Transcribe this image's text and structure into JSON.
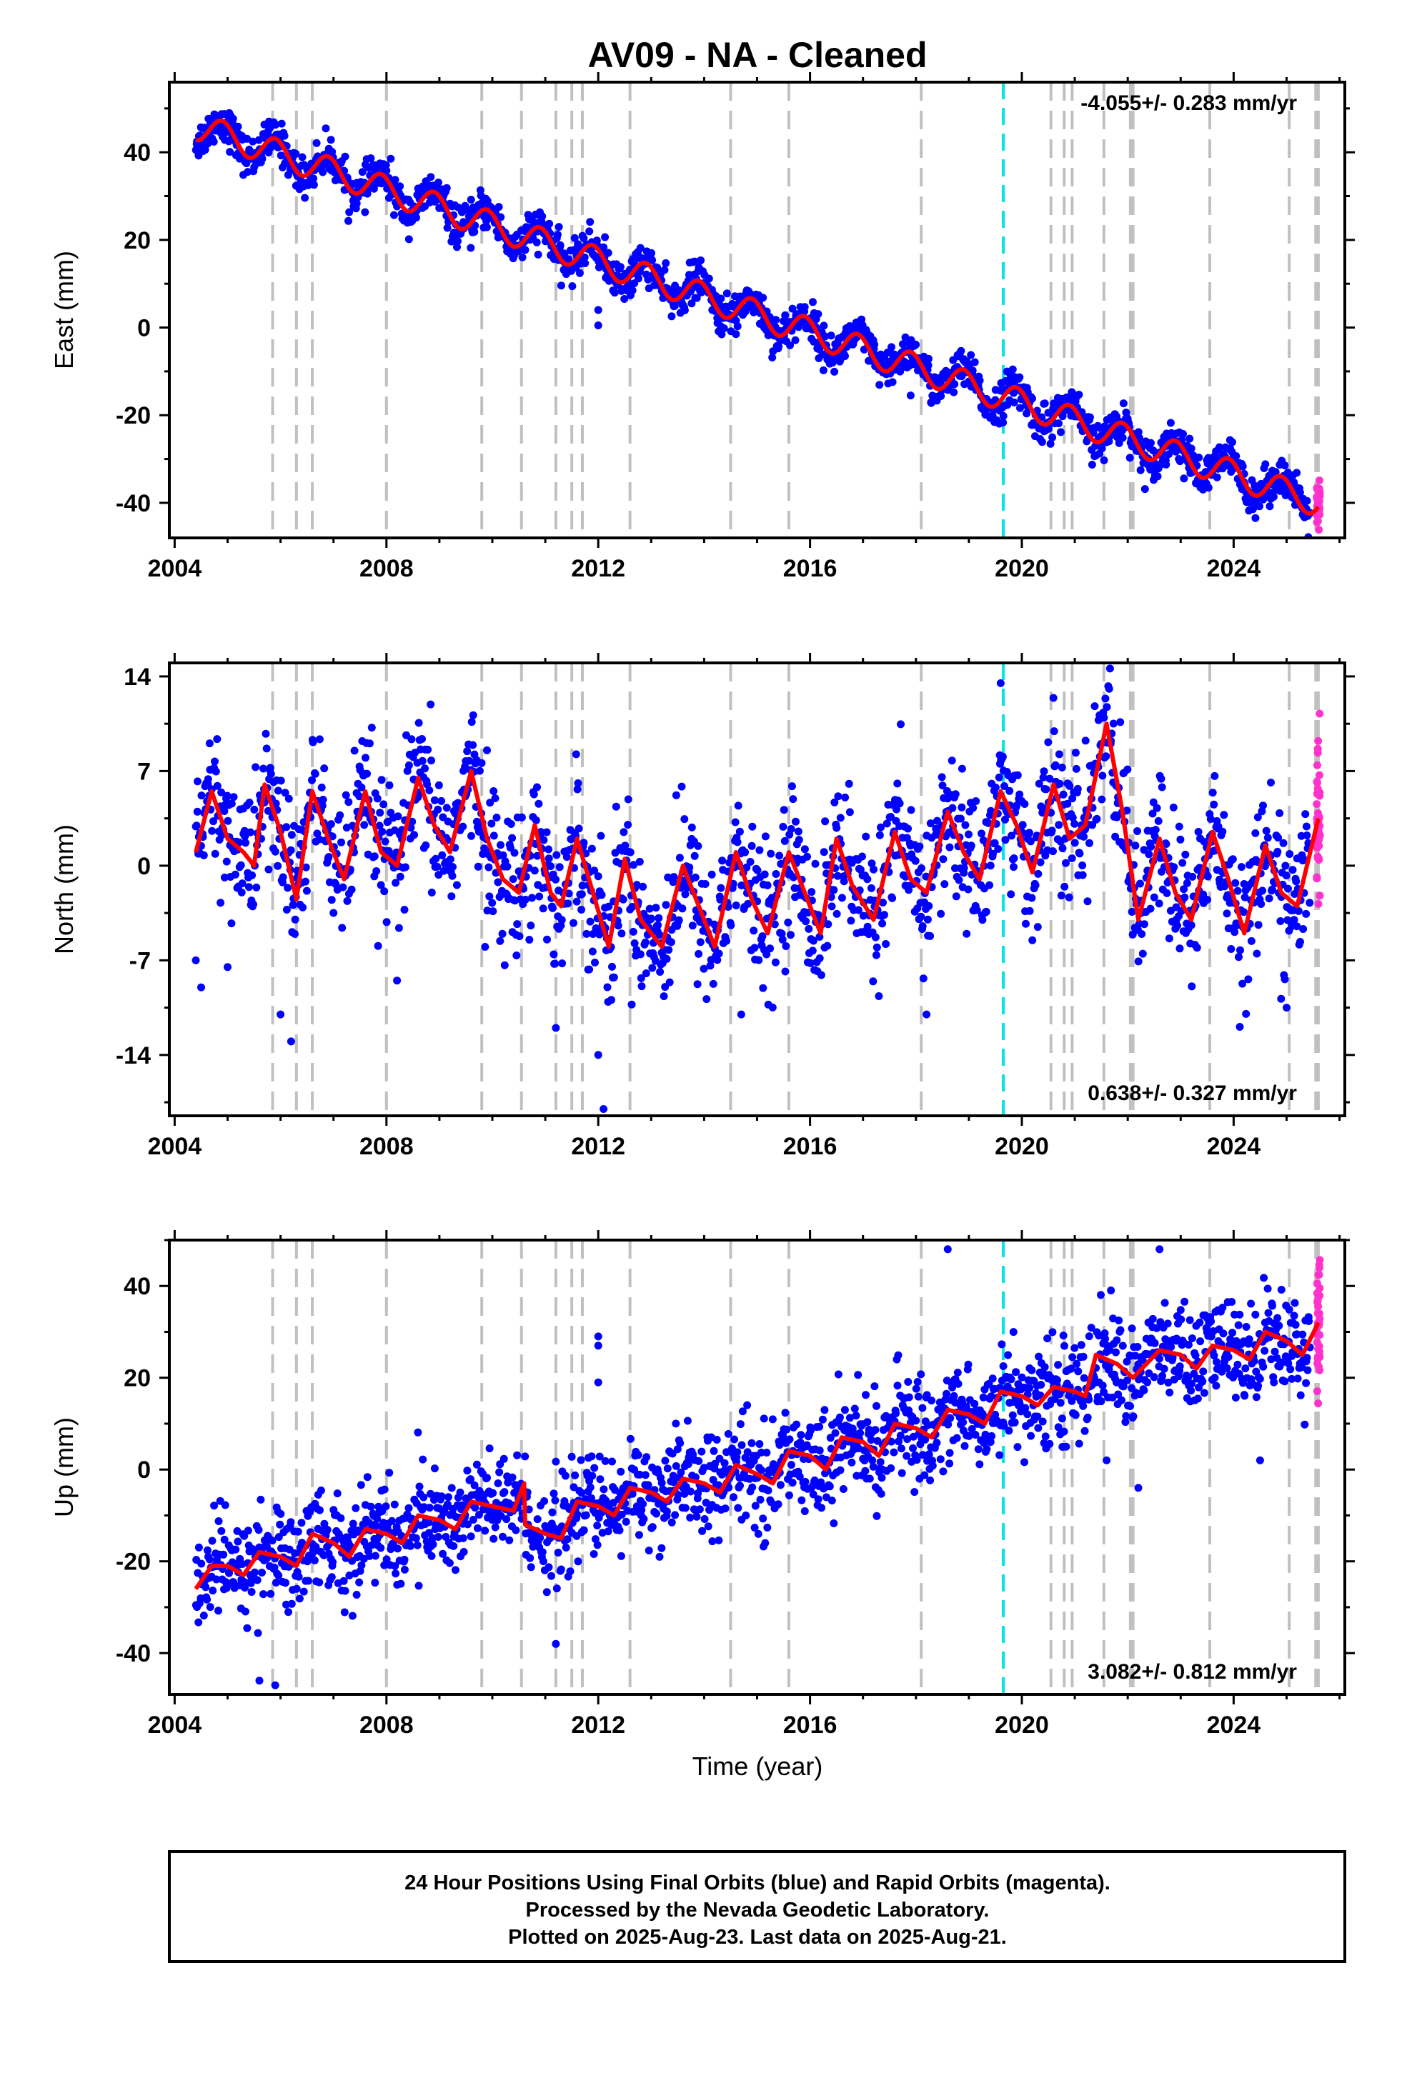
{
  "figure": {
    "title": "AV09  - NA - Cleaned",
    "xlabel": "Time (year)",
    "footer": [
      "24 Hour Positions Using Final Orbits (blue) and Rapid Orbits (magenta).",
      "Processed by the Nevada Geodetic Laboratory.",
      "Plotted on 2025-Aug-23. Last data on 2025-Aug-21."
    ]
  },
  "colors": {
    "final_points": "#0000ff",
    "rapid_points": "#ff33cc",
    "model_line": "#ff0000",
    "equipment_change": "#c0c0c0",
    "earthquake_line": "#00e5e5"
  },
  "chart_data": [
    {
      "type": "scatter",
      "component": "east",
      "ylabel": "East (mm)",
      "rate_label": "-4.055+/- 0.283 mm/yr",
      "xlim": [
        2003.9,
        2026.1
      ],
      "ylim": [
        -48,
        56
      ],
      "xticks": [
        "2004",
        "2008",
        "2012",
        "2016",
        "2020",
        "2024"
      ],
      "yticks": [
        "-40",
        "-20",
        "0",
        "20",
        "40"
      ],
      "ytick_values": [
        -40,
        -20,
        0,
        20,
        40
      ],
      "model": {
        "start": 2004.4,
        "end": 2025.6,
        "offset_at_start": 46.0,
        "rate": -4.055,
        "seasonal_amplitude": 3.2,
        "seasonal_phase_year": 2004.9,
        "scatter": 2.2
      },
      "outliers": [
        [
          2012.0,
          4.0
        ],
        [
          2012.0,
          0.5
        ],
        [
          2014.6,
          -1.5
        ],
        [
          2017.9,
          -15.5
        ]
      ],
      "series": [
        {
          "name": "Final Orbits",
          "color": "#0000ff"
        },
        {
          "name": "Rapid Orbits",
          "color": "#ff33cc"
        },
        {
          "name": "Model fit",
          "color": "#ff0000"
        }
      ]
    },
    {
      "type": "scatter",
      "component": "north",
      "ylabel": "North (mm)",
      "rate_label": "0.638+/- 0.327 mm/yr",
      "xlim": [
        2003.9,
        2026.1
      ],
      "ylim": [
        -18.5,
        15
      ],
      "xticks": [
        "2004",
        "2008",
        "2012",
        "2016",
        "2020",
        "2024"
      ],
      "yticks": [
        "-14",
        "-7",
        "0",
        "7",
        "14"
      ],
      "ytick_values": [
        -14,
        -7,
        0,
        7,
        14
      ],
      "model_knots": [
        [
          2004.4,
          1.0
        ],
        [
          2004.7,
          5.5
        ],
        [
          2005.0,
          2.0
        ],
        [
          2005.3,
          1.0
        ],
        [
          2005.5,
          0.0
        ],
        [
          2005.7,
          6.0
        ],
        [
          2006.0,
          2.5
        ],
        [
          2006.3,
          -2.5
        ],
        [
          2006.6,
          5.5
        ],
        [
          2006.9,
          2.0
        ],
        [
          2007.2,
          -1.0
        ],
        [
          2007.6,
          5.5
        ],
        [
          2007.9,
          1.0
        ],
        [
          2008.2,
          0.0
        ],
        [
          2008.6,
          6.5
        ],
        [
          2008.9,
          3.0
        ],
        [
          2009.2,
          1.0
        ],
        [
          2009.6,
          7.0
        ],
        [
          2009.9,
          2.0
        ],
        [
          2010.2,
          -1.0
        ],
        [
          2010.5,
          -2.0
        ],
        [
          2010.8,
          3.0
        ],
        [
          2011.1,
          -2.0
        ],
        [
          2011.3,
          -3.0
        ],
        [
          2011.6,
          2.0
        ],
        [
          2011.9,
          -2.0
        ],
        [
          2012.2,
          -6.0
        ],
        [
          2012.5,
          0.5
        ],
        [
          2012.8,
          -4.0
        ],
        [
          2013.2,
          -6.0
        ],
        [
          2013.6,
          0.0
        ],
        [
          2013.9,
          -3.0
        ],
        [
          2014.2,
          -6.0
        ],
        [
          2014.6,
          1.0
        ],
        [
          2014.9,
          -2.5
        ],
        [
          2015.2,
          -5.0
        ],
        [
          2015.6,
          1.0
        ],
        [
          2015.9,
          -2.0
        ],
        [
          2016.2,
          -5.0
        ],
        [
          2016.5,
          2.0
        ],
        [
          2016.8,
          -1.5
        ],
        [
          2017.2,
          -4.0
        ],
        [
          2017.6,
          2.5
        ],
        [
          2017.9,
          -1.0
        ],
        [
          2018.2,
          -2.0
        ],
        [
          2018.6,
          4.0
        ],
        [
          2018.9,
          1.0
        ],
        [
          2019.2,
          -1.0
        ],
        [
          2019.6,
          5.5
        ],
        [
          2019.9,
          3.0
        ],
        [
          2020.2,
          -0.5
        ],
        [
          2020.6,
          6.0
        ],
        [
          2020.9,
          2.0
        ],
        [
          2021.2,
          3.0
        ],
        [
          2021.6,
          10.5
        ],
        [
          2021.9,
          4.0
        ],
        [
          2022.2,
          -4.0
        ],
        [
          2022.6,
          2.0
        ],
        [
          2022.9,
          -2.0
        ],
        [
          2023.2,
          -4.0
        ],
        [
          2023.6,
          2.5
        ],
        [
          2023.9,
          -1.0
        ],
        [
          2024.2,
          -5.0
        ],
        [
          2024.6,
          1.5
        ],
        [
          2024.9,
          -2.0
        ],
        [
          2025.2,
          -3.0
        ],
        [
          2025.6,
          3.5
        ]
      ],
      "scatter": 2.6,
      "outliers": [
        [
          2004.4,
          -7.0
        ],
        [
          2004.5,
          -9.0
        ],
        [
          2005.0,
          -7.5
        ],
        [
          2006.2,
          -13.0
        ],
        [
          2006.0,
          -11.0
        ],
        [
          2008.2,
          -8.5
        ],
        [
          2011.2,
          -12.0
        ],
        [
          2012.0,
          -14.0
        ],
        [
          2012.1,
          -18.0
        ],
        [
          2014.7,
          -11.0
        ],
        [
          2018.2,
          -11.0
        ],
        [
          2019.6,
          13.5
        ],
        [
          2025.0,
          -10.5
        ]
      ],
      "series": [
        {
          "name": "Final Orbits",
          "color": "#0000ff"
        },
        {
          "name": "Rapid Orbits",
          "color": "#ff33cc"
        },
        {
          "name": "Model fit",
          "color": "#ff0000"
        }
      ]
    },
    {
      "type": "scatter",
      "component": "up",
      "ylabel": "Up (mm)",
      "rate_label": "3.082+/- 0.812 mm/yr",
      "xlim": [
        2003.9,
        2026.1
      ],
      "ylim": [
        -49,
        50
      ],
      "xticks": [
        "2004",
        "2008",
        "2012",
        "2016",
        "2020",
        "2024"
      ],
      "yticks": [
        "-40",
        "-20",
        "0",
        "20",
        "40"
      ],
      "ytick_values": [
        -40,
        -20,
        0,
        20,
        40
      ],
      "model_knots": [
        [
          2004.4,
          -26.0
        ],
        [
          2004.7,
          -21.0
        ],
        [
          2005.0,
          -21.0
        ],
        [
          2005.3,
          -23.0
        ],
        [
          2005.6,
          -18.0
        ],
        [
          2006.0,
          -19.0
        ],
        [
          2006.3,
          -21.0
        ],
        [
          2006.6,
          -14.0
        ],
        [
          2007.0,
          -16.0
        ],
        [
          2007.3,
          -19.0
        ],
        [
          2007.6,
          -13.0
        ],
        [
          2008.0,
          -14.0
        ],
        [
          2008.3,
          -16.0
        ],
        [
          2008.6,
          -10.0
        ],
        [
          2009.0,
          -11.0
        ],
        [
          2009.3,
          -13.0
        ],
        [
          2009.6,
          -7.0
        ],
        [
          2010.0,
          -8.0
        ],
        [
          2010.4,
          -9.0
        ],
        [
          2010.6,
          -3.0
        ],
        [
          2010.62,
          -12.0
        ],
        [
          2011.0,
          -14.0
        ],
        [
          2011.3,
          -15.0
        ],
        [
          2011.6,
          -7.0
        ],
        [
          2012.0,
          -8.0
        ],
        [
          2012.3,
          -10.0
        ],
        [
          2012.6,
          -4.0
        ],
        [
          2013.0,
          -5.0
        ],
        [
          2013.3,
          -7.0
        ],
        [
          2013.6,
          -2.0
        ],
        [
          2014.0,
          -3.0
        ],
        [
          2014.3,
          -5.0
        ],
        [
          2014.6,
          1.0
        ],
        [
          2015.0,
          -1.0
        ],
        [
          2015.3,
          -3.0
        ],
        [
          2015.6,
          4.0
        ],
        [
          2016.0,
          3.0
        ],
        [
          2016.3,
          0.0
        ],
        [
          2016.6,
          7.0
        ],
        [
          2017.0,
          6.0
        ],
        [
          2017.3,
          3.0
        ],
        [
          2017.6,
          10.0
        ],
        [
          2018.0,
          9.0
        ],
        [
          2018.3,
          7.0
        ],
        [
          2018.6,
          13.0
        ],
        [
          2019.0,
          12.0
        ],
        [
          2019.3,
          10.0
        ],
        [
          2019.6,
          17.0
        ],
        [
          2020.0,
          16.0
        ],
        [
          2020.3,
          14.0
        ],
        [
          2020.6,
          18.0
        ],
        [
          2021.0,
          17.0
        ],
        [
          2021.2,
          16.0
        ],
        [
          2021.4,
          25.0
        ],
        [
          2021.8,
          23.0
        ],
        [
          2022.1,
          20.0
        ],
        [
          2022.6,
          26.0
        ],
        [
          2023.0,
          25.0
        ],
        [
          2023.3,
          22.0
        ],
        [
          2023.6,
          27.0
        ],
        [
          2024.0,
          26.0
        ],
        [
          2024.3,
          24.0
        ],
        [
          2024.6,
          30.0
        ],
        [
          2025.0,
          28.0
        ],
        [
          2025.3,
          25.0
        ],
        [
          2025.6,
          32.0
        ]
      ],
      "scatter": 5.5,
      "outliers": [
        [
          2005.6,
          -46.0
        ],
        [
          2005.9,
          -47.0
        ],
        [
          2011.2,
          -38.0
        ],
        [
          2012.0,
          29.0
        ],
        [
          2012.0,
          27.0
        ],
        [
          2012.0,
          19.0
        ],
        [
          2018.6,
          48.0
        ],
        [
          2022.6,
          48.0
        ],
        [
          2021.6,
          2.0
        ],
        [
          2022.2,
          -4.0
        ],
        [
          2024.5,
          2.0
        ]
      ],
      "series": [
        {
          "name": "Final Orbits",
          "color": "#0000ff"
        },
        {
          "name": "Rapid Orbits",
          "color": "#ff33cc"
        },
        {
          "name": "Model fit",
          "color": "#ff0000"
        }
      ]
    }
  ],
  "equipment_changes": [
    2005.85,
    2006.3,
    2006.6,
    2008.0,
    2009.8,
    2010.55,
    2011.2,
    2011.5,
    2011.7,
    2012.6,
    2014.5,
    2015.6,
    2018.1,
    2020.55,
    2020.8,
    2020.95,
    2021.55,
    2022.05,
    2022.1,
    2023.55,
    2025.05,
    2025.55,
    2025.6
  ],
  "earthquake": 2019.65,
  "rapid_start": 2025.45
}
